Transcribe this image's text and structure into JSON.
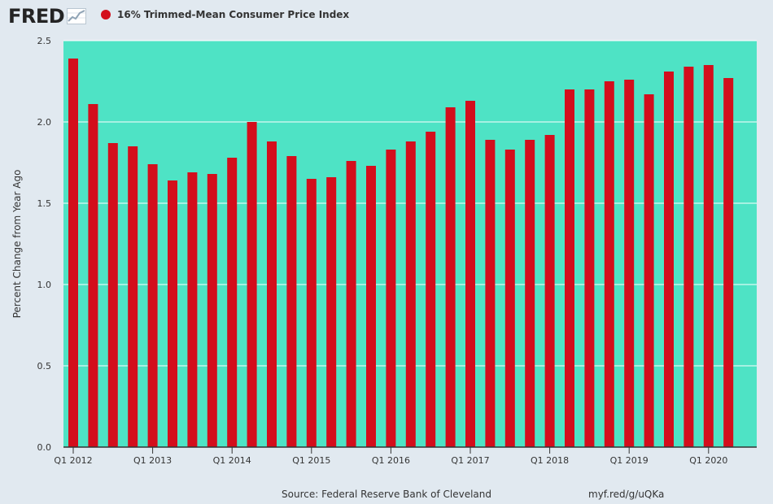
{
  "header": {
    "logo_text": "FRED",
    "legend_label": "16% Trimmed-Mean Consumer Price Index"
  },
  "footer": {
    "source": "Source: Federal Reserve Bank of Cleveland",
    "url": "myf.red/g/uQKa"
  },
  "colors": {
    "page_background": "#e1e9f0",
    "plot_background": "#4ee3c5",
    "bar": "#d30e1c",
    "text": "#333333"
  },
  "chart_data": {
    "type": "bar",
    "title": "",
    "ylabel": "Percent Change from Year Ago",
    "xlabel": "",
    "ylim": [
      0,
      2.5
    ],
    "yticks": [
      "0.0",
      "0.5",
      "1.0",
      "1.5",
      "2.0",
      "2.5"
    ],
    "grid": true,
    "categories": [
      "Q1 2012",
      "Q2 2012",
      "Q3 2012",
      "Q4 2012",
      "Q1 2013",
      "Q2 2013",
      "Q3 2013",
      "Q4 2013",
      "Q1 2014",
      "Q2 2014",
      "Q3 2014",
      "Q4 2014",
      "Q1 2015",
      "Q2 2015",
      "Q3 2015",
      "Q4 2015",
      "Q1 2016",
      "Q2 2016",
      "Q3 2016",
      "Q4 2016",
      "Q1 2017",
      "Q2 2017",
      "Q3 2017",
      "Q4 2017",
      "Q1 2018",
      "Q2 2018",
      "Q3 2018",
      "Q4 2018",
      "Q1 2019",
      "Q2 2019",
      "Q3 2019",
      "Q4 2019",
      "Q1 2020",
      "Q2 2020"
    ],
    "xtick_labels": [
      "Q1 2012",
      "Q1 2013",
      "Q1 2014",
      "Q1 2015",
      "Q1 2016",
      "Q1 2017",
      "Q1 2018",
      "Q1 2019",
      "Q1 2020"
    ],
    "series": [
      {
        "name": "16% Trimmed-Mean Consumer Price Index",
        "values": [
          2.39,
          2.11,
          1.87,
          1.85,
          1.74,
          1.64,
          1.69,
          1.68,
          1.78,
          2.0,
          1.88,
          1.79,
          1.65,
          1.66,
          1.76,
          1.73,
          1.83,
          1.88,
          1.94,
          2.09,
          2.13,
          1.89,
          1.83,
          1.89,
          1.92,
          2.2,
          2.2,
          2.25,
          2.26,
          2.17,
          2.31,
          2.34,
          2.35,
          2.27
        ]
      }
    ]
  }
}
